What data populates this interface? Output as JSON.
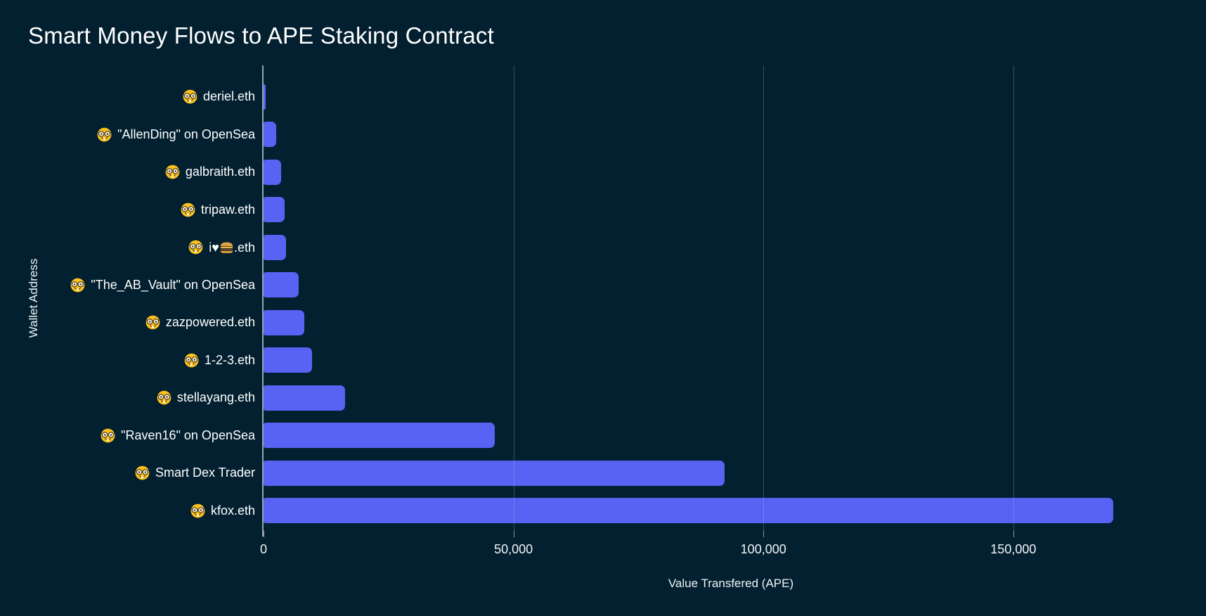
{
  "title": "Smart Money Flows to APE Staking Contract",
  "colors": {
    "background": "#032030",
    "bar": "#5663f3",
    "text": "#ffffff",
    "gridline": "rgba(185,205,220,0.28)",
    "axis_line": "#97a5b1"
  },
  "chart_data": {
    "type": "bar",
    "orientation": "horizontal",
    "title": "Smart Money Flows to APE Staking Contract",
    "xlabel": "Value Transfered (APE)",
    "ylabel": "Wallet Address",
    "xlim": [
      0,
      187000
    ],
    "x_ticks": [
      0,
      50000,
      100000,
      150000
    ],
    "x_tick_labels": [
      "0",
      "50,000",
      "100,000",
      "150,000"
    ],
    "grid": true,
    "legend": false,
    "row_prefix_emoji": "🤓",
    "categories": [
      "deriel.eth",
      "\"AllenDing\" on OpenSea",
      "galbraith.eth",
      "tripaw.eth",
      "i❤🍔.eth",
      "\"The_AB_Vault\" on OpenSea",
      "zazpowered.eth",
      "1-2-3.eth",
      "stellayang.eth",
      "\"Raven16\" on OpenSea",
      "Smart Dex Trader",
      "kfox.eth"
    ],
    "values": [
      470,
      2500,
      3500,
      4200,
      4550,
      7100,
      8100,
      9700,
      16300,
      46200,
      92200,
      170000
    ]
  }
}
